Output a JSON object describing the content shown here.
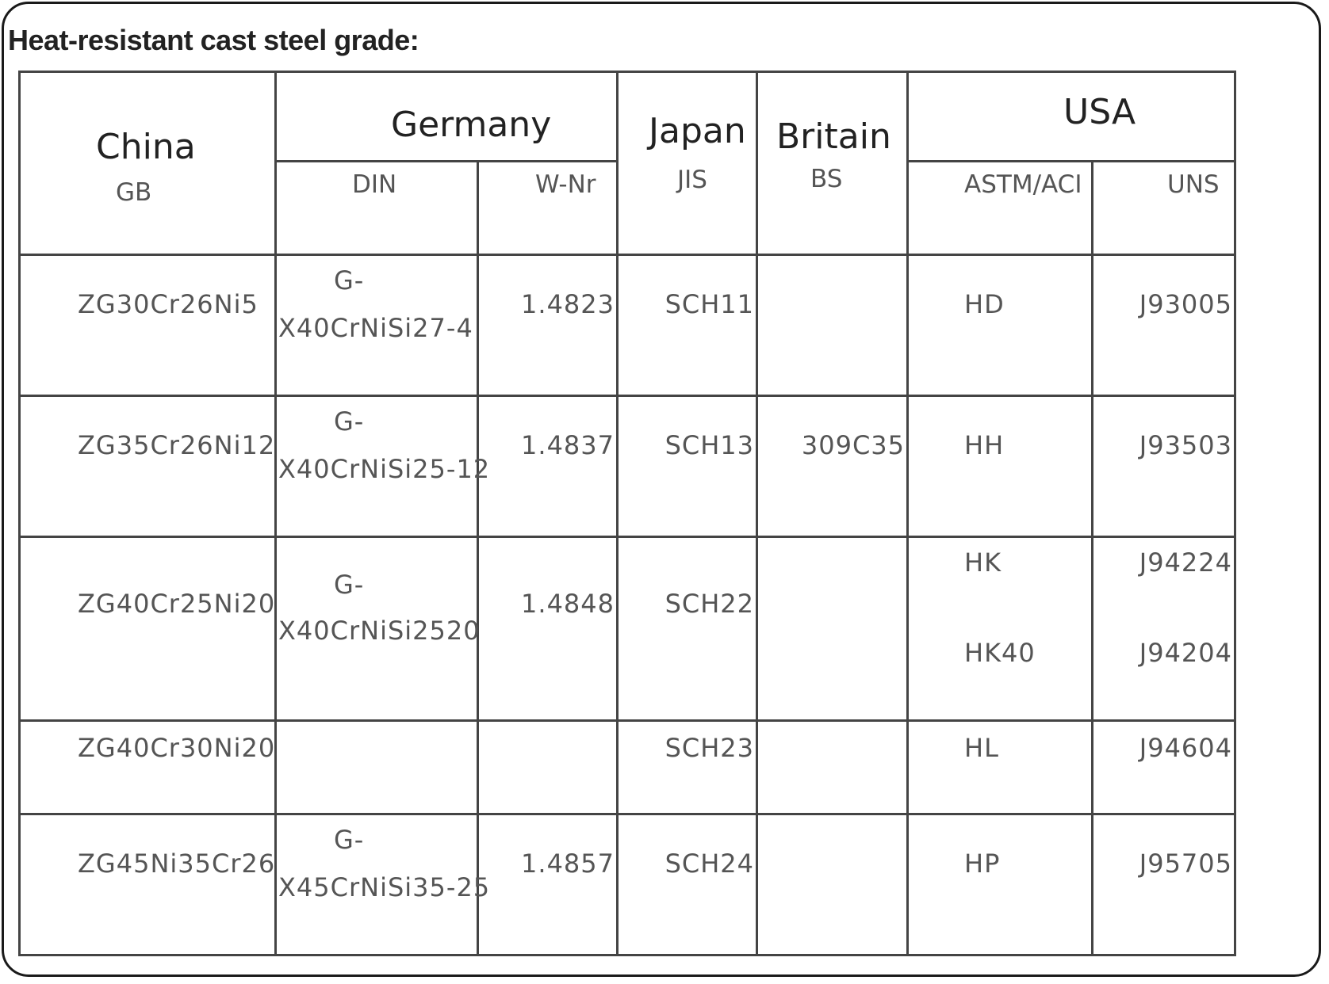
{
  "title": "Heat-resistant cast steel grade:",
  "header": {
    "china": "China",
    "gb": "GB",
    "germany": "Germany",
    "din": "DIN",
    "wnr": "W-Nr",
    "japan": "Japan",
    "jis": "JIS",
    "britain": "Britain",
    "bs": "BS",
    "usa": "USA",
    "astm": "ASTM/ACI",
    "uns": "UNS"
  },
  "rows": [
    {
      "gb": "ZG30Cr26Ni5",
      "din1": "G-",
      "din2": "X40CrNiSi27-4",
      "wnr": "1.4823",
      "jis": "SCH11",
      "bs": "",
      "astm": "HD",
      "uns": "J93005"
    },
    {
      "gb": "ZG35Cr26Ni12",
      "din1": "G-",
      "din2": "X40CrNiSi25-12",
      "wnr": "1.4837",
      "jis": "SCH13",
      "bs": "309C35",
      "astm": "HH",
      "uns": "J93503"
    },
    {
      "gb": "ZG40Cr25Ni20",
      "din1": "G-",
      "din2": "X40CrNiSi2520",
      "wnr": "1.4848",
      "jis": "SCH22",
      "bs": "",
      "astm": "HK",
      "astm2": "HK40",
      "uns": "J94224",
      "uns2": "J94204"
    },
    {
      "gb": "ZG40Cr30Ni20",
      "din1": "",
      "din2": "",
      "wnr": "",
      "jis": "SCH23",
      "bs": "",
      "astm": "HL",
      "uns": "J94604"
    },
    {
      "gb": "ZG45Ni35Cr26",
      "din1": "G-",
      "din2": "X45CrNiSi35-25",
      "wnr": "1.4857",
      "jis": "SCH24",
      "bs": "",
      "astm": "HP",
      "uns": "J95705"
    }
  ]
}
